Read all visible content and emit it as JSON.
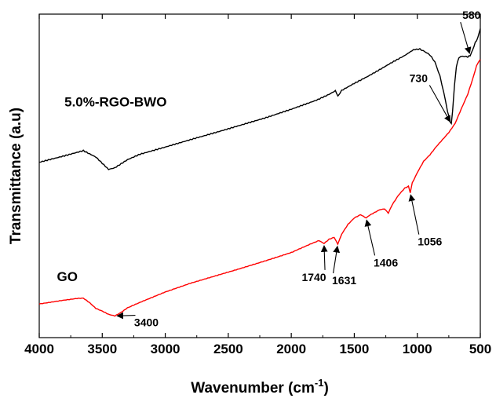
{
  "chart_data": {
    "type": "line",
    "title": "",
    "xlabel": "Wavenumber (cm",
    "xlabel_sup": "-1",
    "xlabel_close": ")",
    "ylabel": "Transmittance (a.u)",
    "xlim": [
      4000,
      500
    ],
    "ylim": [
      0,
      1
    ],
    "x_reversed": true,
    "x_ticks": [
      4000,
      3500,
      3000,
      2500,
      2000,
      1500,
      1000,
      500
    ],
    "x_tick_labels": [
      "4000",
      "3500",
      "3000",
      "2500",
      "2000",
      "1500",
      "1000",
      "500"
    ],
    "grid": false,
    "y_ticks_shown": false,
    "series": [
      {
        "name": "5.0%-RGO-BWO",
        "color": "#000000",
        "points": [
          [
            4000,
            0.542
          ],
          [
            3800,
            0.562
          ],
          [
            3650,
            0.578
          ],
          [
            3550,
            0.558
          ],
          [
            3450,
            0.52
          ],
          [
            3400,
            0.525
          ],
          [
            3300,
            0.55
          ],
          [
            3200,
            0.567
          ],
          [
            3000,
            0.589
          ],
          [
            2800,
            0.612
          ],
          [
            2600,
            0.634
          ],
          [
            2400,
            0.657
          ],
          [
            2200,
            0.68
          ],
          [
            2000,
            0.706
          ],
          [
            1800,
            0.734
          ],
          [
            1700,
            0.752
          ],
          [
            1650,
            0.763
          ],
          [
            1630,
            0.747
          ],
          [
            1600,
            0.764
          ],
          [
            1500,
            0.786
          ],
          [
            1400,
            0.806
          ],
          [
            1300,
            0.828
          ],
          [
            1200,
            0.851
          ],
          [
            1100,
            0.872
          ],
          [
            1030,
            0.89
          ],
          [
            980,
            0.892
          ],
          [
            940,
            0.884
          ],
          [
            900,
            0.874
          ],
          [
            860,
            0.852
          ],
          [
            820,
            0.808
          ],
          [
            790,
            0.758
          ],
          [
            760,
            0.7
          ],
          [
            740,
            0.668
          ],
          [
            730,
            0.661
          ],
          [
            720,
            0.7
          ],
          [
            705,
            0.778
          ],
          [
            690,
            0.838
          ],
          [
            670,
            0.866
          ],
          [
            640,
            0.87
          ],
          [
            600,
            0.868
          ],
          [
            580,
            0.872
          ],
          [
            560,
            0.89
          ],
          [
            540,
            0.912
          ],
          [
            520,
            0.926
          ],
          [
            505,
            0.949
          ],
          [
            500,
            0.955
          ]
        ]
      },
      {
        "name": "GO",
        "color": "#ff0000",
        "points": [
          [
            4000,
            0.104
          ],
          [
            3900,
            0.11
          ],
          [
            3800,
            0.116
          ],
          [
            3700,
            0.121
          ],
          [
            3650,
            0.122
          ],
          [
            3600,
            0.108
          ],
          [
            3550,
            0.09
          ],
          [
            3500,
            0.082
          ],
          [
            3450,
            0.072
          ],
          [
            3400,
            0.067
          ],
          [
            3350,
            0.078
          ],
          [
            3300,
            0.092
          ],
          [
            3200,
            0.109
          ],
          [
            3000,
            0.141
          ],
          [
            2800,
            0.168
          ],
          [
            2600,
            0.191
          ],
          [
            2400,
            0.214
          ],
          [
            2200,
            0.238
          ],
          [
            2000,
            0.263
          ],
          [
            1850,
            0.289
          ],
          [
            1780,
            0.3
          ],
          [
            1740,
            0.291
          ],
          [
            1700,
            0.304
          ],
          [
            1660,
            0.31
          ],
          [
            1631,
            0.289
          ],
          [
            1600,
            0.32
          ],
          [
            1550,
            0.35
          ],
          [
            1500,
            0.37
          ],
          [
            1450,
            0.38
          ],
          [
            1406,
            0.37
          ],
          [
            1380,
            0.378
          ],
          [
            1300,
            0.395
          ],
          [
            1260,
            0.398
          ],
          [
            1230,
            0.385
          ],
          [
            1200,
            0.41
          ],
          [
            1150,
            0.44
          ],
          [
            1100,
            0.462
          ],
          [
            1070,
            0.468
          ],
          [
            1056,
            0.448
          ],
          [
            1040,
            0.478
          ],
          [
            1000,
            0.51
          ],
          [
            950,
            0.545
          ],
          [
            900,
            0.565
          ],
          [
            850,
            0.59
          ],
          [
            800,
            0.612
          ],
          [
            750,
            0.634
          ],
          [
            700,
            0.662
          ],
          [
            650,
            0.708
          ],
          [
            600,
            0.752
          ],
          [
            560,
            0.8
          ],
          [
            530,
            0.84
          ],
          [
            510,
            0.855
          ],
          [
            500,
            0.86
          ]
        ]
      }
    ],
    "annotations": [
      {
        "label": "580",
        "x": 580,
        "series": "5.0%-RGO-BWO",
        "text_x": 570,
        "text_y": 0.985,
        "anchor": "middle"
      },
      {
        "label": "730",
        "x": 730,
        "series": "5.0%-RGO-BWO",
        "text_x": 990,
        "text_y": 0.79,
        "anchor": "middle"
      },
      {
        "label": "1740",
        "x": 1740,
        "series": "GO",
        "text_x": 1820,
        "text_y": 0.175,
        "anchor": "middle"
      },
      {
        "label": "1631",
        "x": 1631,
        "series": "GO",
        "text_x": 1580,
        "text_y": 0.165,
        "anchor": "middle"
      },
      {
        "label": "1406",
        "x": 1406,
        "series": "GO",
        "text_x": 1250,
        "text_y": 0.22,
        "anchor": "middle"
      },
      {
        "label": "1056",
        "x": 1056,
        "series": "GO",
        "text_x": 900,
        "text_y": 0.285,
        "anchor": "middle"
      },
      {
        "label": "3400",
        "x": 3400,
        "series": "GO",
        "text_x": 3150,
        "text_y": 0.035,
        "anchor": "middle"
      }
    ],
    "series_labels": [
      {
        "series": "5.0%-RGO-BWO",
        "text_x": 3800,
        "text_y": 0.715
      },
      {
        "series": "GO",
        "text_x": 3860,
        "text_y": 0.175
      }
    ]
  }
}
